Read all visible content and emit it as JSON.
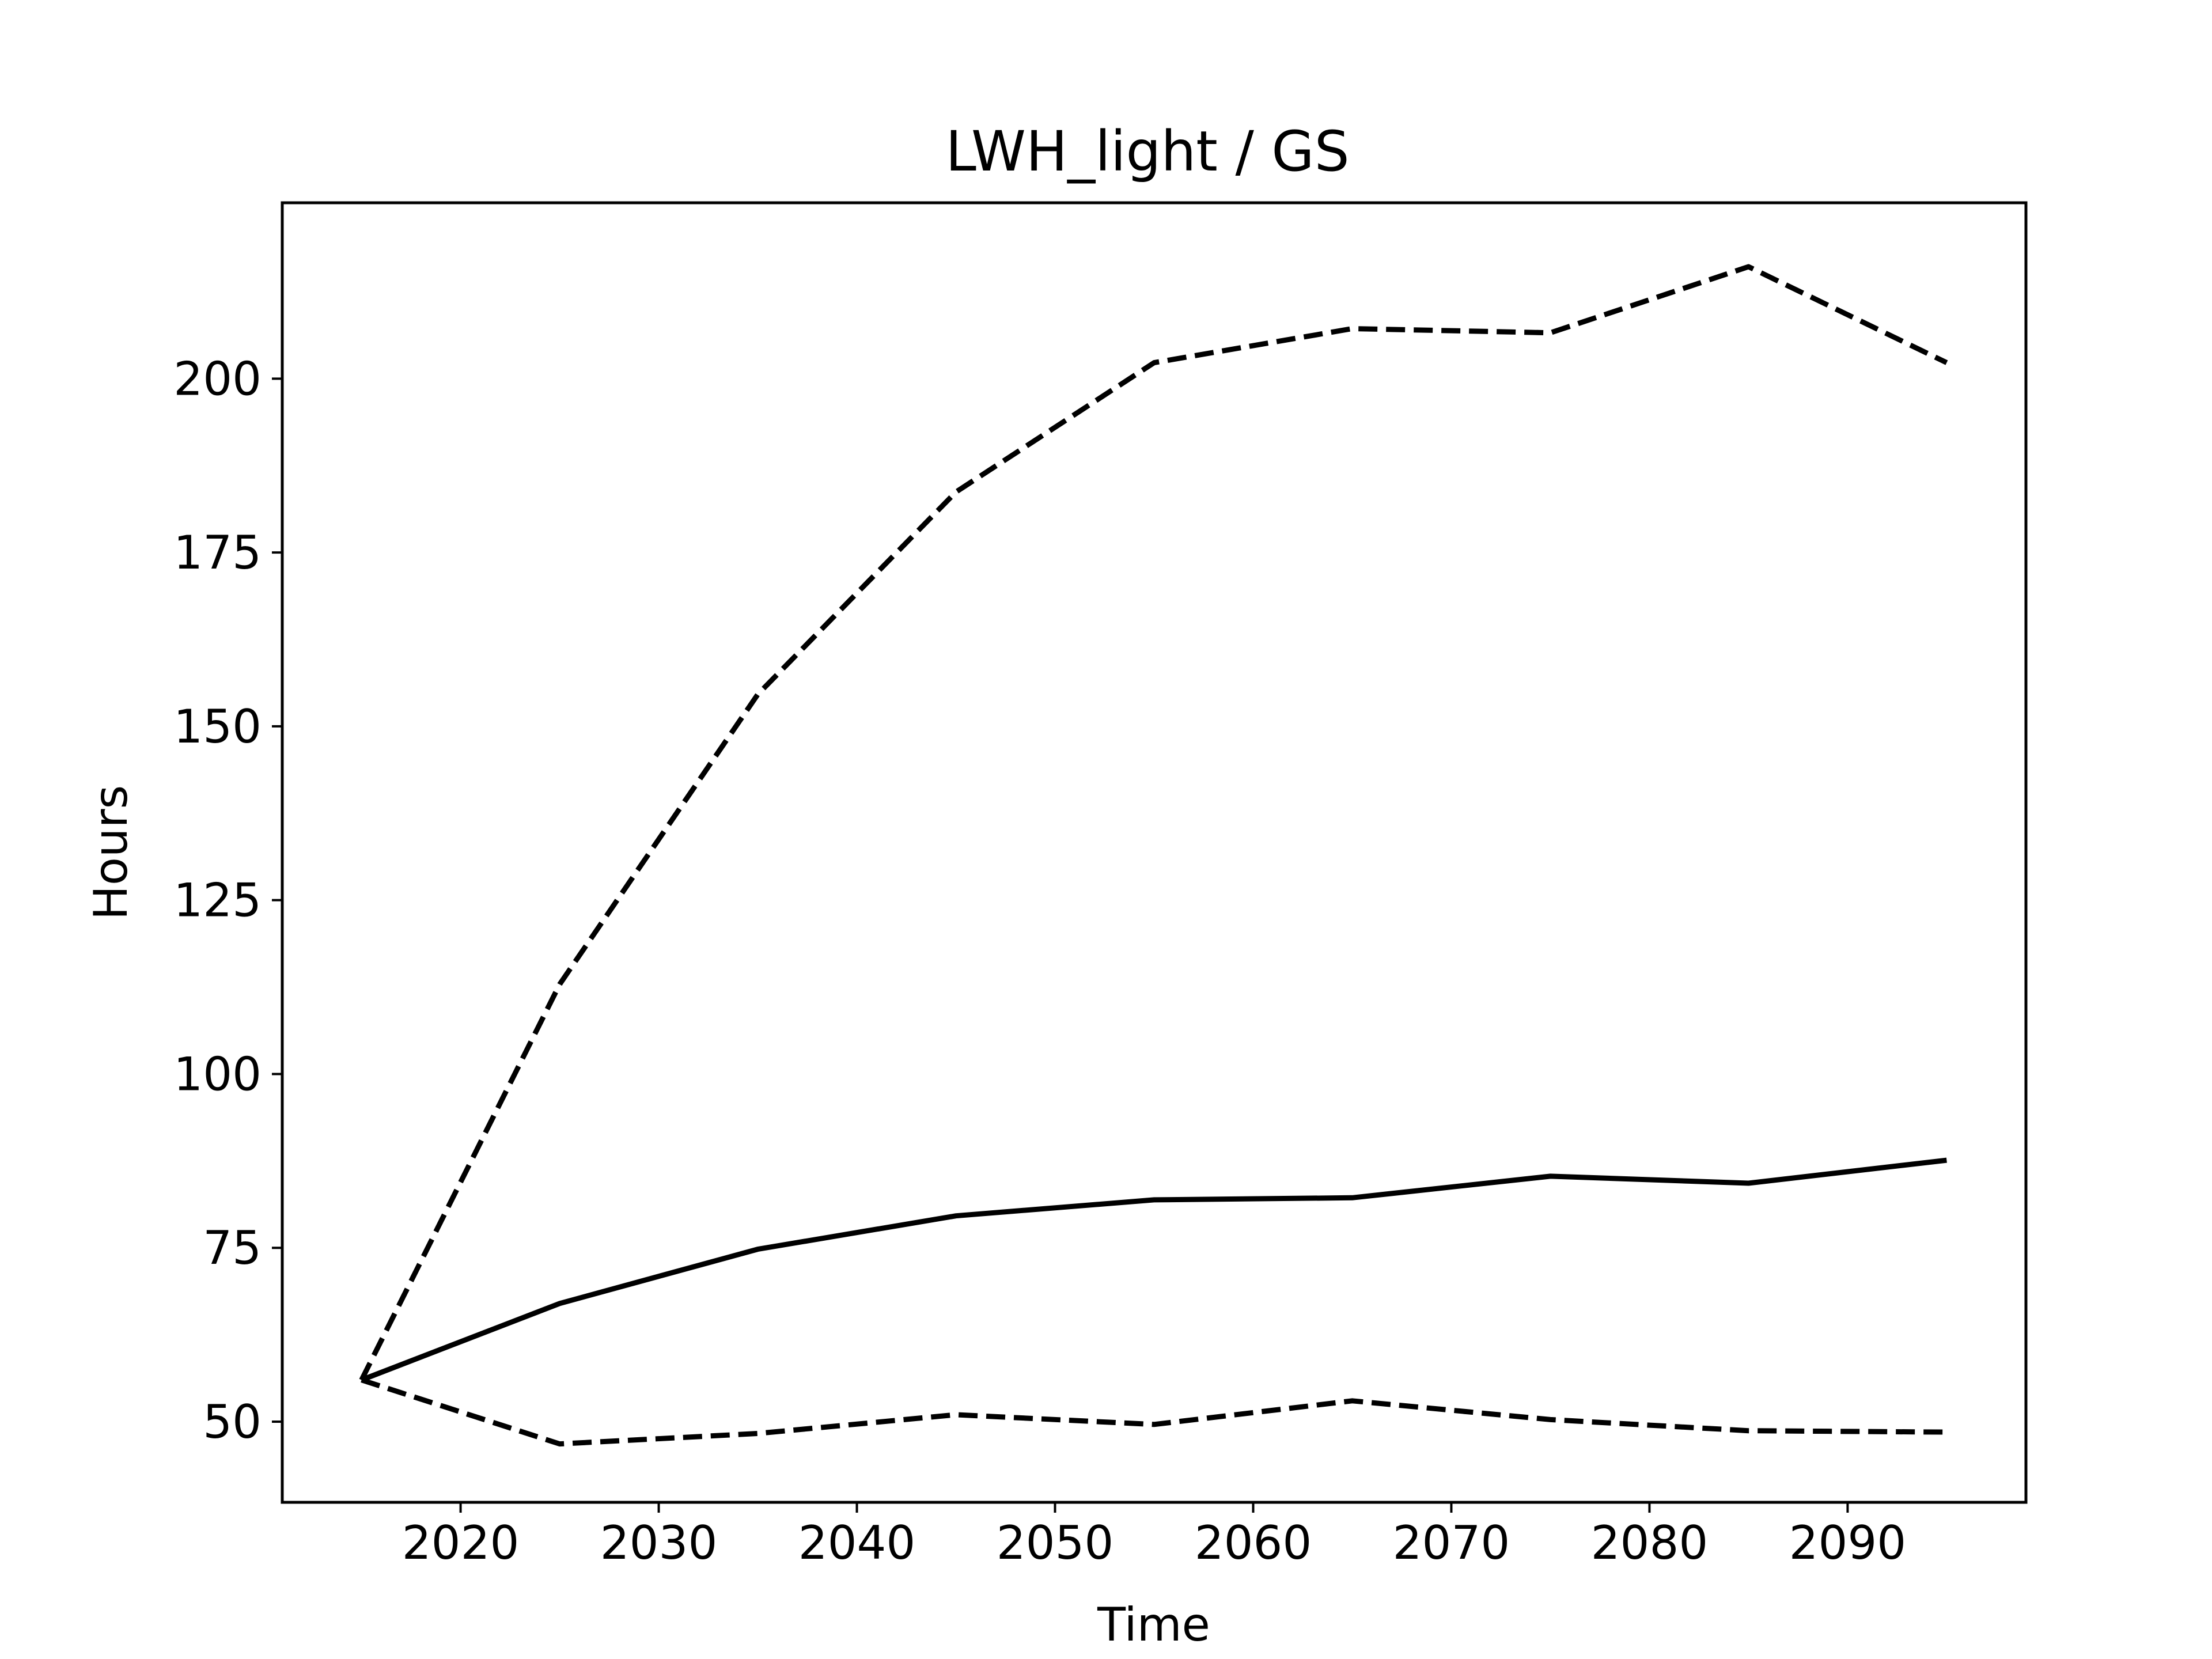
{
  "chart_data": {
    "type": "line",
    "title": "LWH_light / GS",
    "xlabel": "Time",
    "ylabel": "Hours",
    "x": [
      2015,
      2025,
      2035,
      2045,
      2055,
      2065,
      2075,
      2085,
      2095
    ],
    "xlim": [
      2011,
      2099
    ],
    "ylim": [
      38.4,
      225.3
    ],
    "xticks": [
      2020,
      2030,
      2040,
      2050,
      2060,
      2070,
      2080,
      2090
    ],
    "yticks": [
      50,
      75,
      100,
      125,
      150,
      175,
      200
    ],
    "grid": false,
    "legend": "none",
    "series": [
      {
        "style": "solid",
        "color": "#000000",
        "values": [
          56,
          67,
          74.8,
          79.6,
          81.9,
          82.2,
          85.3,
          84.3,
          87.6
        ]
      },
      {
        "style": "dashed",
        "color": "#000000",
        "values": [
          56,
          112.9,
          154.6,
          183.7,
          202.3,
          207.2,
          206.6,
          216.1,
          202.3
        ]
      },
      {
        "style": "dashed",
        "color": "#000000",
        "values": [
          56,
          46.8,
          48.3,
          51,
          49.6,
          53,
          50.3,
          48.7,
          48.5
        ]
      }
    ]
  }
}
